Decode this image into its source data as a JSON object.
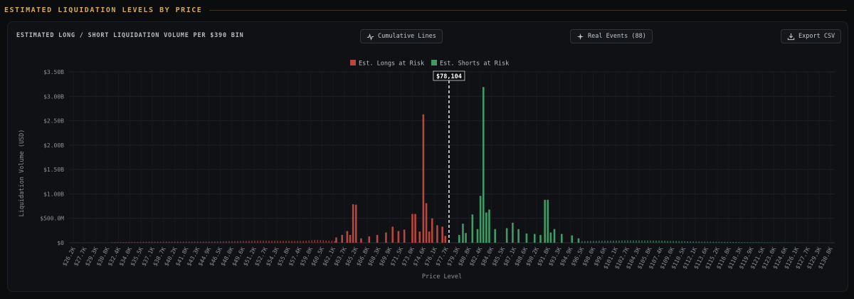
{
  "section": {
    "title": "ESTIMATED LIQUIDATION LEVELS BY PRICE"
  },
  "card": {
    "title": "ESTIMATED LONG / SHORT LIQUIDATION VOLUME PER $390 BIN"
  },
  "toolbar": {
    "cumulative_label": "Cumulative Lines",
    "events_label": "Real Events (88)",
    "export_label": "Export CSV"
  },
  "colors": {
    "longs": "#b7463f",
    "shorts": "#3f9a68",
    "marker": "#ffffff",
    "title_accent": "#d6a85f"
  },
  "chart_data": {
    "type": "bar",
    "title": "",
    "xlabel": "Price Level",
    "ylabel": "Liquidation Volume (USD)",
    "ylim": [
      0,
      3500000000
    ],
    "y_ticks": [
      {
        "value": 0,
        "label": "$0"
      },
      {
        "value": 500000000,
        "label": "$500.0M"
      },
      {
        "value": 1000000000,
        "label": "$1.00B"
      },
      {
        "value": 1500000000,
        "label": "$1.50B"
      },
      {
        "value": 2000000000,
        "label": "$2.00B"
      },
      {
        "value": 2500000000,
        "label": "$2.50B"
      },
      {
        "value": 3000000000,
        "label": "$3.00B"
      },
      {
        "value": 3500000000,
        "label": "$3.50B"
      }
    ],
    "x_tick_labels": [
      "$26.2K",
      "$27.7K",
      "$29.3K",
      "$30.8K",
      "$32.4K",
      "$34.0K",
      "$35.5K",
      "$37.1K",
      "$38.7K",
      "$40.2K",
      "$41.8K",
      "$43.3K",
      "$44.9K",
      "$46.5K",
      "$48.0K",
      "$49.6K",
      "$51.2K",
      "$52.7K",
      "$54.3K",
      "$55.8K",
      "$57.4K",
      "$59.0K",
      "$60.5K",
      "$62.1K",
      "$63.7K",
      "$65.2K",
      "$66.8K",
      "$68.3K",
      "$69.9K",
      "$71.5K",
      "$73.0K",
      "$74.6K",
      "$76.1K",
      "$77.7K",
      "$79.3K",
      "$80.8K",
      "$82.4K",
      "$84.0K",
      "$85.5K",
      "$87.1K",
      "$88.6K",
      "$90.2K",
      "$91.8K",
      "$93.3K",
      "$94.9K",
      "$96.5K",
      "$98.0K",
      "$99.6K",
      "$101.1K",
      "$102.7K",
      "$104.3K",
      "$105.8K",
      "$107.4K",
      "$109.0K",
      "$110.5K",
      "$112.1K",
      "$113.6K",
      "$115.2K",
      "$116.8K",
      "$118.3K",
      "$119.9K",
      "$121.5K",
      "$123.0K",
      "$124.6K",
      "$126.1K",
      "$127.7K",
      "$129.3K",
      "$130.8K"
    ],
    "current_price_label": "$78,104",
    "current_price": 78104,
    "series": [
      {
        "name": "Est. Longs at Risk",
        "points": [
          [
            62700,
            110000000
          ],
          [
            63500,
            160000000
          ],
          [
            64200,
            240000000
          ],
          [
            64600,
            160000000
          ],
          [
            65000,
            790000000
          ],
          [
            65400,
            780000000
          ],
          [
            66100,
            90000000
          ],
          [
            67200,
            130000000
          ],
          [
            68300,
            160000000
          ],
          [
            69500,
            210000000
          ],
          [
            70400,
            330000000
          ],
          [
            71200,
            240000000
          ],
          [
            72000,
            270000000
          ],
          [
            73100,
            590000000
          ],
          [
            73500,
            590000000
          ],
          [
            74100,
            230000000
          ],
          [
            74600,
            2630000000
          ],
          [
            75000,
            810000000
          ],
          [
            75400,
            230000000
          ],
          [
            75800,
            500000000
          ],
          [
            76500,
            360000000
          ],
          [
            77200,
            330000000
          ],
          [
            77600,
            140000000
          ]
        ],
        "tail_points": [
          [
            37000,
            20000000
          ],
          [
            45000,
            25000000
          ],
          [
            52000,
            45000000
          ],
          [
            58000,
            40000000
          ],
          [
            60000,
            60000000
          ]
        ]
      },
      {
        "name": "Est. Shorts at Risk",
        "points": [
          [
            79500,
            160000000
          ],
          [
            80000,
            390000000
          ],
          [
            80400,
            200000000
          ],
          [
            81300,
            580000000
          ],
          [
            82000,
            280000000
          ],
          [
            82400,
            960000000
          ],
          [
            82800,
            3190000000
          ],
          [
            83200,
            620000000
          ],
          [
            83600,
            680000000
          ],
          [
            84400,
            280000000
          ],
          [
            86000,
            300000000
          ],
          [
            86800,
            410000000
          ],
          [
            87600,
            280000000
          ],
          [
            88700,
            190000000
          ],
          [
            89800,
            180000000
          ],
          [
            90600,
            160000000
          ],
          [
            91200,
            880000000
          ],
          [
            91600,
            880000000
          ],
          [
            92000,
            210000000
          ],
          [
            92500,
            280000000
          ],
          [
            93500,
            180000000
          ],
          [
            94900,
            150000000
          ],
          [
            95800,
            90000000
          ]
        ],
        "tail_points": [
          [
            98000,
            40000000
          ],
          [
            103000,
            50000000
          ],
          [
            107000,
            45000000
          ],
          [
            112000,
            25000000
          ],
          [
            117000,
            15000000
          ],
          [
            122000,
            8000000
          ]
        ]
      }
    ],
    "legend_position": "top-center",
    "grid": true
  }
}
